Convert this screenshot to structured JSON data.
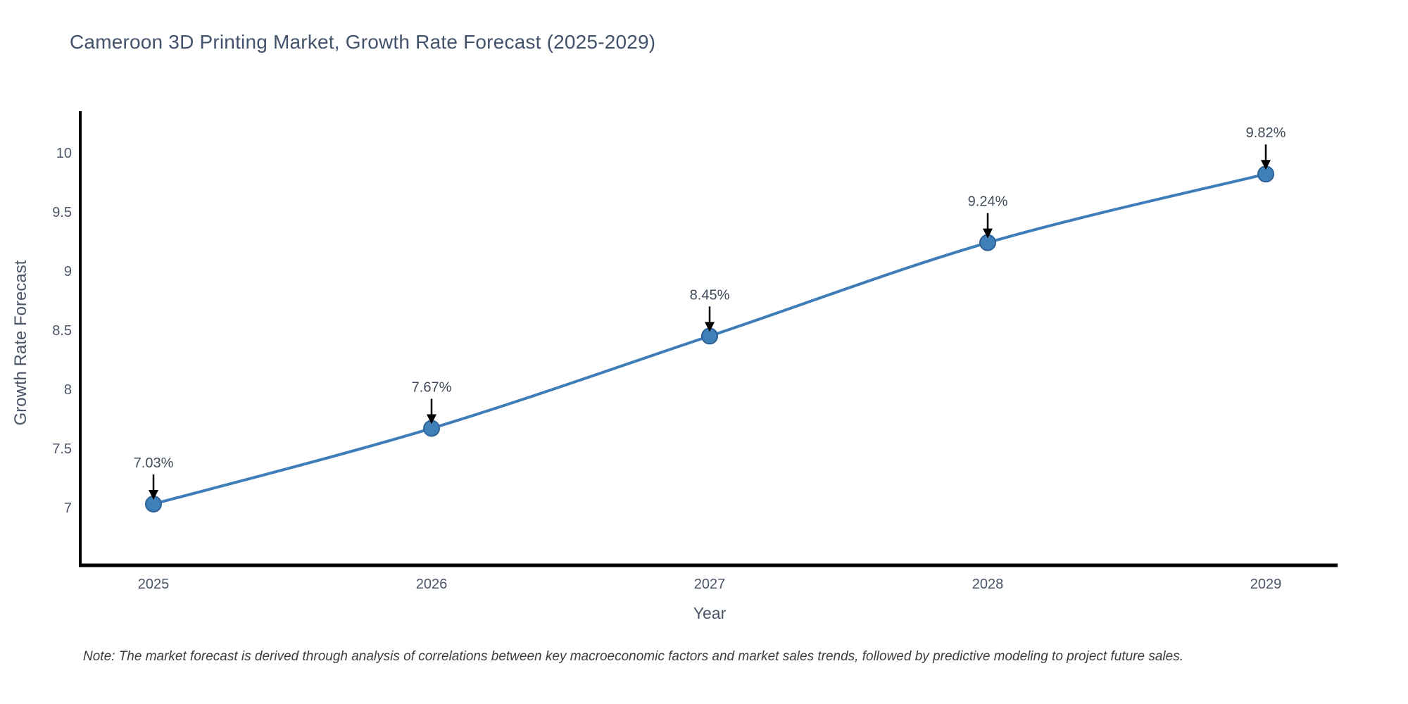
{
  "page": {
    "background_color": "#ffffff"
  },
  "title": {
    "text": "Cameroon 3D Printing Market, Growth Rate Forecast (2025-2029)",
    "color": "#42536B"
  },
  "note": {
    "text": "Note: The market forecast is derived through analysis of correlations between key macroeconomic factors and market sales trends, followed by predictive modeling to project future sales."
  },
  "chart_data": {
    "type": "line",
    "title": "Cameroon 3D Printing Market, Growth Rate Forecast (2025-2029)",
    "xlabel": "Year",
    "ylabel": "Growth Rate Forecast",
    "x": [
      2025,
      2026,
      2027,
      2028,
      2029
    ],
    "series": [
      {
        "name": "Growth Rate Forecast",
        "values": [
          7.03,
          7.67,
          8.45,
          9.24,
          9.82
        ]
      }
    ],
    "point_labels": [
      "7.03%",
      "7.67%",
      "8.45%",
      "9.24%",
      "9.82%"
    ],
    "yticks": [
      7,
      7.5,
      8,
      8.5,
      9,
      9.5,
      10
    ],
    "ylim": [
      6.51,
      10.35
    ],
    "grid": false,
    "legend_visible": false,
    "line_shape": "spline",
    "colors": {
      "line": "#3E7DB8",
      "marker_fill": "#4080B8",
      "marker_edge": "#2E6296",
      "annotation_arrow": "#000000",
      "axis_line": "#000000",
      "tick_label": "#4A5568",
      "point_label": "#404B5A"
    }
  }
}
